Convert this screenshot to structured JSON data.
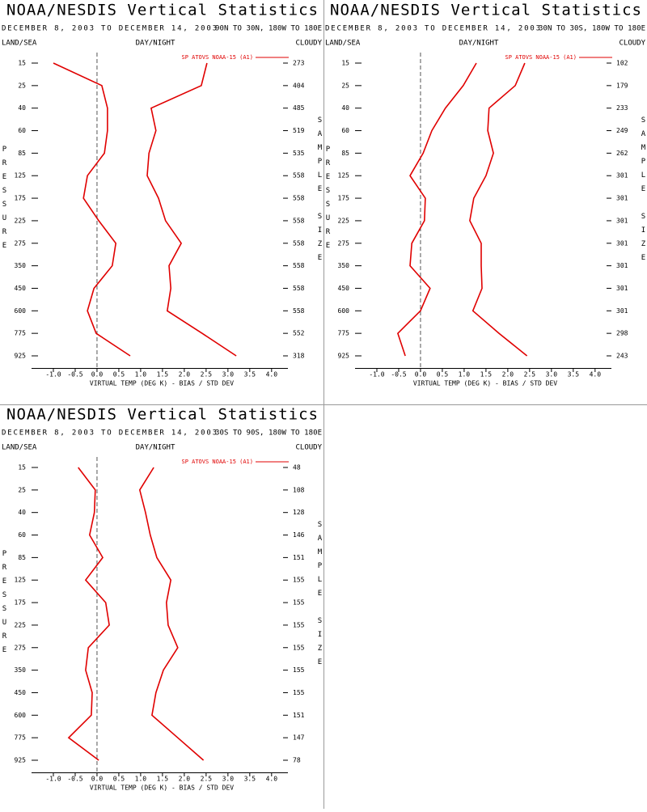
{
  "chart_data": [
    {
      "type": "line",
      "title": "NOAA/NESDIS Vertical Statistics",
      "date_range": "DECEMBER 8, 2003 TO DECEMBER 14, 2003",
      "region": "90N TO 30N, 180W TO 180E",
      "left_header": "LAND/SEA",
      "center_header": "DAY/NIGHT",
      "right_header": "CLOUDY",
      "y_label": "PRESSURE",
      "y2_label": "SAMPLE SIZE",
      "x_label": "VIRTUAL TEMP (DEG K) - BIAS / STD DEV",
      "levels": [
        15,
        25,
        40,
        60,
        85,
        125,
        175,
        225,
        275,
        350,
        450,
        600,
        775,
        925
      ],
      "sample_size": [
        273,
        404,
        485,
        519,
        535,
        558,
        558,
        558,
        558,
        558,
        558,
        558,
        552,
        318
      ],
      "series": [
        {
          "name": "SP ATOVS NOAA-15 (A1)",
          "color": "#e00000",
          "bias": [
            -1.0,
            0.11,
            0.24,
            0.24,
            0.17,
            -0.22,
            -0.31,
            0.04,
            0.43,
            0.35,
            -0.07,
            -0.22,
            -0.02,
            0.76
          ],
          "std_dev": [
            2.52,
            2.39,
            1.24,
            1.35,
            1.19,
            1.15,
            1.41,
            1.57,
            1.93,
            1.65,
            1.69,
            1.61,
            2.41,
            3.19
          ]
        }
      ],
      "xlim": [
        -1.5,
        4.3
      ],
      "xticks": [
        {
          "value": -1,
          "label": "-1.0"
        },
        -0.5,
        {
          "value": 0,
          "label": "0.0"
        },
        0.5,
        {
          "value": 1,
          "label": "1.0"
        },
        1.5,
        {
          "value": 2,
          "label": "2.0"
        },
        2.5,
        {
          "value": 3,
          "label": "3.0"
        },
        3.5,
        {
          "value": 4,
          "label": "4.0"
        }
      ]
    },
    {
      "type": "line",
      "title": "NOAA/NESDIS Vertical Statistics",
      "date_range": "DECEMBER 8, 2003 TO DECEMBER 14, 2003",
      "region": "30N TO 30S, 180W TO 180E",
      "left_header": "LAND/SEA",
      "center_header": "DAY/NIGHT",
      "right_header": "CLOUDY",
      "y_label": "PRESSURE",
      "y2_label": "SAMPLE SIZE",
      "x_label": "VIRTUAL TEMP (DEG K) - BIAS / STD DEV",
      "levels": [
        15,
        25,
        40,
        60,
        85,
        125,
        175,
        225,
        275,
        350,
        450,
        600,
        775,
        925
      ],
      "sample_size": [
        102,
        179,
        233,
        249,
        262,
        301,
        301,
        301,
        301,
        301,
        301,
        301,
        298,
        243
      ],
      "series": [
        {
          "name": "SP ATOVS NOAA-15 (A1)",
          "color": "#e00000",
          "bias": [
            1.28,
            0.98,
            0.57,
            0.26,
            0.06,
            -0.24,
            0.11,
            0.09,
            -0.2,
            -0.24,
            0.22,
            0.0,
            -0.52,
            -0.35
          ],
          "std_dev": [
            2.39,
            2.17,
            1.57,
            1.54,
            1.67,
            1.5,
            1.22,
            1.13,
            1.39,
            1.39,
            1.41,
            1.2,
            1.8,
            2.44
          ]
        }
      ],
      "xlim": [
        -1.5,
        4.3
      ],
      "xticks": [
        {
          "value": -1,
          "label": "-1.0"
        },
        -0.5,
        {
          "value": 0,
          "label": "0.0"
        },
        0.5,
        {
          "value": 1,
          "label": "1.0"
        },
        1.5,
        {
          "value": 2,
          "label": "2.0"
        },
        2.5,
        {
          "value": 3,
          "label": "3.0"
        },
        3.5,
        {
          "value": 4,
          "label": "4.0"
        }
      ]
    },
    {
      "type": "line",
      "title": "NOAA/NESDIS Vertical Statistics",
      "date_range": "DECEMBER 8, 2003 TO DECEMBER 14, 2003",
      "region": "30S TO 90S, 180W TO 180E",
      "left_header": "LAND/SEA",
      "center_header": "DAY/NIGHT",
      "right_header": "CLOUDY",
      "y_label": "PRESSURE",
      "y2_label": "SAMPLE SIZE",
      "x_label": "VIRTUAL TEMP (DEG K) - BIAS / STD DEV",
      "levels": [
        15,
        25,
        40,
        60,
        85,
        125,
        175,
        225,
        275,
        350,
        450,
        600,
        775,
        925
      ],
      "sample_size": [
        48,
        108,
        128,
        146,
        151,
        155,
        155,
        155,
        155,
        155,
        155,
        151,
        147,
        78
      ],
      "series": [
        {
          "name": "SP ATOVS NOAA-15 (A1)",
          "color": "#e00000",
          "bias": [
            -0.43,
            -0.04,
            -0.06,
            -0.17,
            0.13,
            -0.26,
            0.2,
            0.28,
            -0.2,
            -0.26,
            -0.11,
            -0.13,
            -0.65,
            0.04
          ],
          "std_dev": [
            1.3,
            0.98,
            1.11,
            1.22,
            1.37,
            1.69,
            1.59,
            1.63,
            1.85,
            1.52,
            1.35,
            1.26,
            1.85,
            2.44
          ]
        }
      ],
      "xlim": [
        -1.5,
        4.3
      ],
      "xticks": [
        {
          "value": -1,
          "label": "-1.0"
        },
        -0.5,
        {
          "value": 0,
          "label": "0.0"
        },
        0.5,
        {
          "value": 1,
          "label": "1.0"
        },
        1.5,
        {
          "value": 2,
          "label": "2.0"
        },
        2.5,
        {
          "value": 3,
          "label": "3.0"
        },
        3.5,
        {
          "value": 4,
          "label": "4.0"
        }
      ]
    }
  ]
}
